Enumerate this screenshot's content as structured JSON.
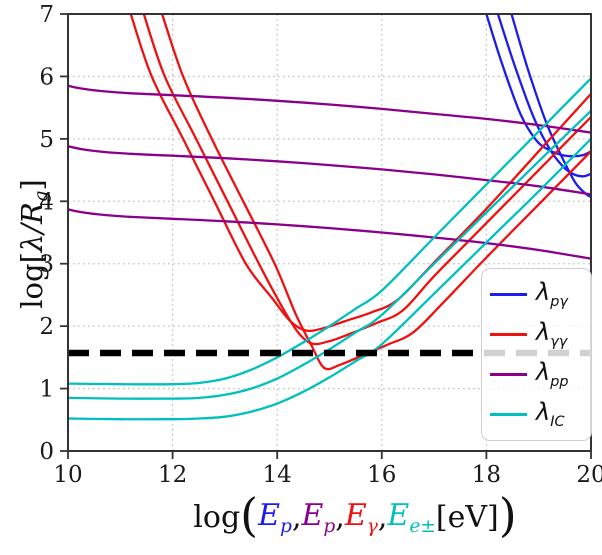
{
  "figure": {
    "background": "#ffffff",
    "ylabel_parts": [
      {
        "text": "log[",
        "kind": "plain"
      },
      {
        "text": "λ/R",
        "kind": "math"
      },
      {
        "text": "g",
        "kind": "sub"
      },
      {
        "text": "]",
        "kind": "plain"
      }
    ],
    "xlabel_parts": [
      {
        "text": "log",
        "kind": "plain"
      },
      {
        "text": "(",
        "kind": "paren"
      },
      {
        "text": "E",
        "sub": "p",
        "kind": "math",
        "color": "#1c1cee"
      },
      {
        "text": ", ",
        "kind": "plain"
      },
      {
        "text": "E",
        "sub": "p",
        "kind": "math",
        "color": "#8b008b"
      },
      {
        "text": ", ",
        "kind": "plain"
      },
      {
        "text": "E",
        "sub": "γ",
        "kind": "math",
        "color": "#ee1111"
      },
      {
        "text": ", ",
        "kind": "plain"
      },
      {
        "text": "E",
        "sub": "e±",
        "kind": "math",
        "color": "#00bfbf"
      },
      {
        "text": "  [eV]",
        "kind": "plain"
      },
      {
        "text": ")",
        "kind": "paren"
      }
    ]
  },
  "colors": {
    "blue": "#1c1cee",
    "red": "#ee1111",
    "purple": "#8b008b",
    "teal": "#00bfbf",
    "grid": "#c6c6c6",
    "spine": "#333333",
    "dash_line": "#000000"
  },
  "legend": {
    "items": [
      {
        "name": "lambda-p-gamma",
        "symbol": "λ",
        "sub": "pγ",
        "color": "#1c1cee"
      },
      {
        "name": "lambda-gamma-gamma",
        "symbol": "λ",
        "sub": "γγ",
        "color": "#ee1111"
      },
      {
        "name": "lambda-pp",
        "symbol": "λ",
        "sub": "pp",
        "color": "#8b008b"
      },
      {
        "name": "lambda-IC",
        "symbol": "λ",
        "sub": "IC",
        "color": "#00bfbf"
      }
    ]
  },
  "chart_data": {
    "type": "line",
    "title": "",
    "xlabel": "log(E_p, E_p, E_gamma, E_e± [eV])",
    "ylabel": "log[lambda/R_g]",
    "xlim": [
      10,
      20
    ],
    "ylim": [
      0,
      7
    ],
    "x_ticks": [
      10,
      12,
      14,
      16,
      18,
      20
    ],
    "y_ticks": [
      0,
      1,
      2,
      3,
      4,
      5,
      6,
      7
    ],
    "grid": true,
    "grid_style": "dotted",
    "legend_position": "lower right",
    "reference_line": {
      "type": "horizontal-dashed",
      "y": 1.57,
      "color": "#000000",
      "width": 6.5
    },
    "series": [
      {
        "name": "lambda_p_gamma_1",
        "group": "lambda_p_gamma",
        "color": "#1c1cee",
        "x": [
          18.0,
          18.3,
          18.65,
          18.95,
          19.2,
          19.45,
          19.65,
          19.85,
          20.0
        ],
        "y": [
          7.0,
          6.2,
          5.4,
          4.98,
          4.82,
          4.74,
          4.72,
          4.74,
          4.8
        ]
      },
      {
        "name": "lambda_p_gamma_2",
        "group": "lambda_p_gamma",
        "color": "#1c1cee",
        "x": [
          18.22,
          18.55,
          18.9,
          19.2,
          19.45,
          19.65,
          19.85,
          20.0
        ],
        "y": [
          7.0,
          6.15,
          5.35,
          4.85,
          4.57,
          4.44,
          4.4,
          4.44
        ]
      },
      {
        "name": "lambda_p_gamma_3",
        "group": "lambda_p_gamma",
        "color": "#1c1cee",
        "x": [
          18.48,
          18.8,
          19.15,
          19.45,
          19.7,
          19.9,
          20.0
        ],
        "y": [
          7.0,
          6.1,
          5.25,
          4.7,
          4.3,
          4.12,
          4.07
        ]
      },
      {
        "name": "lambda_gamma_gamma_1",
        "group": "lambda_gamma_gamma",
        "color": "#ee1111",
        "x": [
          11.2,
          11.6,
          12.2,
          12.8,
          13.4,
          13.9,
          14.25,
          14.55,
          14.9,
          15.3,
          15.8,
          16.3,
          17.0,
          18.0,
          19.0,
          20.0
        ],
        "y": [
          7.0,
          6.0,
          5.0,
          4.0,
          3.0,
          2.45,
          2.08,
          1.93,
          1.97,
          2.08,
          2.22,
          2.42,
          3.02,
          3.88,
          4.8,
          5.72
        ]
      },
      {
        "name": "lambda_gamma_gamma_2",
        "group": "lambda_gamma_gamma",
        "color": "#ee1111",
        "x": [
          11.45,
          11.85,
          12.45,
          13.05,
          13.65,
          14.1,
          14.4,
          14.67,
          15.0,
          15.4,
          15.9,
          16.4,
          17.0,
          18.0,
          19.0,
          20.0
        ],
        "y": [
          7.0,
          6.0,
          5.0,
          4.0,
          3.0,
          2.3,
          1.9,
          1.72,
          1.76,
          1.88,
          2.05,
          2.25,
          2.8,
          3.65,
          4.5,
          5.35
        ]
      },
      {
        "name": "lambda_gamma_gamma_3",
        "group": "lambda_gamma_gamma",
        "color": "#ee1111",
        "x": [
          11.8,
          12.2,
          12.75,
          13.35,
          13.95,
          14.35,
          14.65,
          14.9,
          15.2,
          15.6,
          16.1,
          16.6,
          17.2,
          18.0,
          19.0,
          20.0
        ],
        "y": [
          7.0,
          6.0,
          5.0,
          4.0,
          3.0,
          2.2,
          1.7,
          1.33,
          1.38,
          1.52,
          1.7,
          1.9,
          2.4,
          3.1,
          3.95,
          4.8
        ]
      },
      {
        "name": "lambda_pp_1",
        "group": "lambda_pp",
        "color": "#8b008b",
        "x": [
          10.0,
          10.3,
          10.7,
          11.2,
          12.0,
          13.0,
          14.0,
          15.0,
          16.0,
          17.0,
          18.0,
          19.0,
          20.0
        ],
        "y": [
          5.85,
          5.8,
          5.76,
          5.73,
          5.7,
          5.66,
          5.61,
          5.55,
          5.48,
          5.4,
          5.32,
          5.22,
          5.1
        ]
      },
      {
        "name": "lambda_pp_2",
        "group": "lambda_pp",
        "color": "#8b008b",
        "x": [
          10.0,
          10.3,
          10.7,
          11.2,
          12.0,
          13.0,
          14.0,
          15.0,
          16.0,
          17.0,
          18.0,
          19.0,
          20.0
        ],
        "y": [
          4.88,
          4.83,
          4.79,
          4.76,
          4.73,
          4.69,
          4.64,
          4.58,
          4.51,
          4.43,
          4.34,
          4.24,
          4.11
        ]
      },
      {
        "name": "lambda_pp_3",
        "group": "lambda_pp",
        "color": "#8b008b",
        "x": [
          10.0,
          10.3,
          10.7,
          11.2,
          12.0,
          13.0,
          14.0,
          15.0,
          16.0,
          17.0,
          18.0,
          19.0,
          20.0
        ],
        "y": [
          3.87,
          3.82,
          3.78,
          3.75,
          3.72,
          3.68,
          3.63,
          3.57,
          3.5,
          3.42,
          3.33,
          3.22,
          3.08
        ]
      },
      {
        "name": "lambda_IC_1",
        "group": "lambda_IC",
        "color": "#00bfbf",
        "x": [
          10.0,
          11.0,
          12.0,
          12.5,
          13.0,
          13.5,
          14.0,
          14.5,
          15.0,
          15.5,
          16.0,
          17.0,
          18.0,
          19.0,
          20.0
        ],
        "y": [
          1.08,
          1.07,
          1.07,
          1.09,
          1.16,
          1.3,
          1.5,
          1.74,
          2.0,
          2.28,
          2.57,
          3.42,
          4.27,
          5.12,
          5.97
        ]
      },
      {
        "name": "lambda_IC_2",
        "group": "lambda_IC",
        "color": "#00bfbf",
        "x": [
          10.0,
          11.0,
          12.0,
          12.5,
          13.0,
          13.5,
          14.0,
          14.5,
          15.0,
          15.5,
          16.0,
          17.0,
          18.0,
          19.0,
          20.0
        ],
        "y": [
          0.85,
          0.84,
          0.84,
          0.85,
          0.9,
          1.0,
          1.16,
          1.38,
          1.63,
          1.9,
          2.18,
          3.0,
          3.82,
          4.64,
          5.45
        ]
      },
      {
        "name": "lambda_IC_3",
        "group": "lambda_IC",
        "color": "#00bfbf",
        "x": [
          10.0,
          11.0,
          12.0,
          12.5,
          13.0,
          13.5,
          14.0,
          14.5,
          15.0,
          15.5,
          16.0,
          17.0,
          18.0,
          19.0,
          20.0
        ],
        "y": [
          0.52,
          0.51,
          0.51,
          0.52,
          0.55,
          0.63,
          0.76,
          0.95,
          1.18,
          1.44,
          1.71,
          2.52,
          3.34,
          4.16,
          5.0
        ]
      }
    ]
  }
}
